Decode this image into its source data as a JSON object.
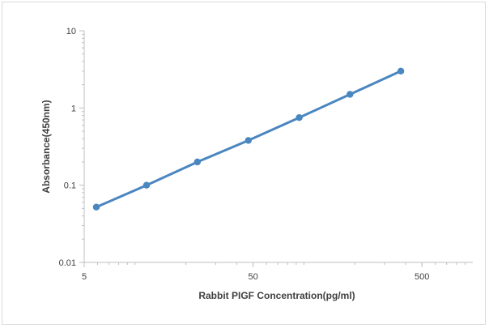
{
  "chart_data": {
    "type": "line",
    "xlabel": "Rabbit PIGF Concentration(pg/ml)",
    "ylabel": "Absorbance(450nm)",
    "x_scale": "log",
    "y_scale": "log",
    "xlim": [
      5,
      1000
    ],
    "ylim": [
      0.01,
      10
    ],
    "x_ticks": [
      5,
      50,
      500
    ],
    "x_tick_labels": [
      "5",
      "50",
      "500"
    ],
    "y_ticks": [
      0.01,
      0.1,
      1,
      10
    ],
    "y_tick_labels": [
      "0.01",
      "0.1",
      "1",
      "10"
    ],
    "grid": false,
    "legend": "none",
    "series": [
      {
        "color": "#4a86c0",
        "x": [
          5.9,
          11.7,
          23.4,
          46.9,
          93.8,
          187.5,
          375
        ],
        "y": [
          0.052,
          0.1,
          0.2,
          0.38,
          0.75,
          1.5,
          3.0
        ]
      }
    ]
  }
}
